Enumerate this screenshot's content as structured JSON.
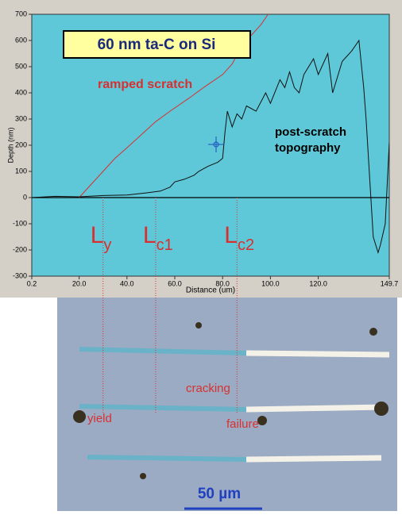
{
  "chart_data": {
    "type": "line",
    "title": "60 nm ta-C on Si",
    "x_label": "Distance (um)",
    "y_label": "Depth (nm)",
    "xlim": [
      0.2,
      149.7
    ],
    "ylim": [
      -300,
      700
    ],
    "xticks": [
      0.2,
      {
        "value": 20,
        "label": "20.0"
      },
      {
        "value": 40,
        "label": "40.0"
      },
      {
        "value": 60,
        "label": "60.0"
      },
      {
        "value": 80,
        "label": "80.0"
      },
      {
        "value": 100,
        "label": "100.0"
      },
      {
        "value": 120,
        "label": "120.0"
      },
      149.7
    ],
    "yticks": [
      -300,
      -200,
      -100,
      0,
      100,
      200,
      300,
      400,
      500,
      600,
      700
    ],
    "series": [
      {
        "name": "ramped scratch",
        "color": "#d83030",
        "x": [
          20,
          25,
          30,
          35,
          40,
          46,
          52,
          58,
          66,
          72,
          80,
          84,
          88,
          92,
          96,
          99
        ],
        "values": [
          0,
          50,
          100,
          150,
          190,
          240,
          290,
          330,
          380,
          420,
          470,
          510,
          580,
          620,
          660,
          700
        ]
      },
      {
        "name": "post-scratch topography",
        "color": "#101010",
        "x": [
          0.2,
          10,
          20,
          30,
          40,
          48,
          54,
          58,
          60,
          64,
          68,
          70,
          74,
          78,
          80,
          81,
          82,
          84,
          86,
          88,
          90,
          94,
          98,
          100,
          104,
          106,
          108,
          110,
          112,
          114,
          118,
          120,
          124,
          126,
          130,
          134,
          137,
          139,
          140,
          142,
          143,
          145,
          146,
          148,
          149.7
        ],
        "values": [
          0,
          5,
          3,
          8,
          10,
          18,
          25,
          40,
          60,
          70,
          85,
          100,
          120,
          135,
          150,
          250,
          330,
          270,
          320,
          300,
          350,
          330,
          400,
          360,
          450,
          420,
          480,
          420,
          400,
          470,
          530,
          470,
          550,
          400,
          520,
          560,
          600,
          420,
          300,
          0,
          -150,
          -210,
          -180,
          -100,
          210
        ]
      }
    ],
    "annotations": {
      "ramped": "ramped scratch",
      "post1": "post-scratch",
      "post2": "topography"
    },
    "markers": [
      {
        "label": "L",
        "sub": "y",
        "x": 30
      },
      {
        "label": "L",
        "sub": "c1",
        "x": 52
      },
      {
        "label": "L",
        "sub": "c2",
        "x": 86
      }
    ],
    "micrograph": {
      "yield": "yield",
      "cracking": "cracking",
      "failure": "failure",
      "scale": "50 µm"
    }
  }
}
